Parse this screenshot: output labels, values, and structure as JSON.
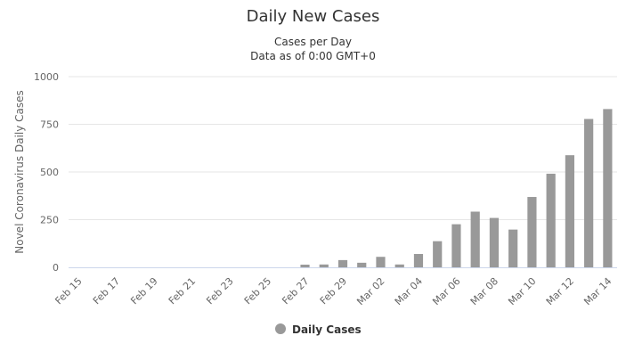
{
  "chart_data": {
    "type": "bar",
    "title": "Daily New Cases",
    "subtitle_line1": "Cases per Day",
    "subtitle_line2": "Data as of 0:00 GMT+0",
    "xlabel": "",
    "ylabel": "Novel Coronavirus Daily Cases",
    "ylim": [
      0,
      1000
    ],
    "yticks": [
      0,
      250,
      500,
      750,
      1000
    ],
    "ytick_labels": [
      "0",
      "250",
      "500",
      "750",
      "1000"
    ],
    "grid": true,
    "legend_position": "bottom-center",
    "categories": [
      "Feb 15",
      "Feb 16",
      "Feb 17",
      "Feb 18",
      "Feb 19",
      "Feb 20",
      "Feb 21",
      "Feb 22",
      "Feb 23",
      "Feb 24",
      "Feb 25",
      "Feb 26",
      "Feb 27",
      "Feb 28",
      "Feb 29",
      "Mar 01",
      "Mar 02",
      "Mar 03",
      "Mar 04",
      "Mar 05",
      "Mar 06",
      "Mar 07",
      "Mar 08",
      "Mar 09",
      "Mar 10",
      "Mar 11",
      "Mar 12",
      "Mar 13",
      "Mar 14"
    ],
    "tick_labels_shown": [
      "Feb 15",
      "Feb 17",
      "Feb 19",
      "Feb 21",
      "Feb 23",
      "Feb 25",
      "Feb 27",
      "Feb 29",
      "Mar 02",
      "Mar 04",
      "Mar 06",
      "Mar 08",
      "Mar 10",
      "Mar 12",
      "Mar 14"
    ],
    "series": [
      {
        "name": "Daily Cases",
        "color": "#999999",
        "values": [
          0,
          0,
          0,
          0,
          0,
          0,
          0,
          0,
          0,
          0,
          0,
          0,
          14,
          15,
          38,
          24,
          55,
          15,
          70,
          137,
          226,
          292,
          259,
          198,
          369,
          491,
          588,
          778,
          830
        ]
      }
    ]
  },
  "colors": {
    "bar": "#999999",
    "grid": "#e6e6e6",
    "axis_text": "#666666",
    "title": "#333333"
  }
}
